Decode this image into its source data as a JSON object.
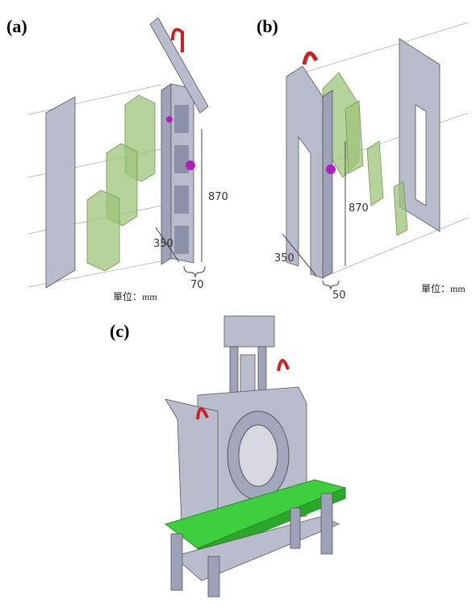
{
  "panel_a": {
    "label": "(a)",
    "dimensions": {
      "height": 870,
      "depth": 350,
      "width": 70
    },
    "unit": "單位：mm"
  },
  "panel_b": {
    "label": "(b)",
    "dimensions": {
      "height": 870,
      "depth": 350,
      "width": 50
    },
    "unit": "單位：mm"
  },
  "panel_c": {
    "label": "(c)"
  }
}
